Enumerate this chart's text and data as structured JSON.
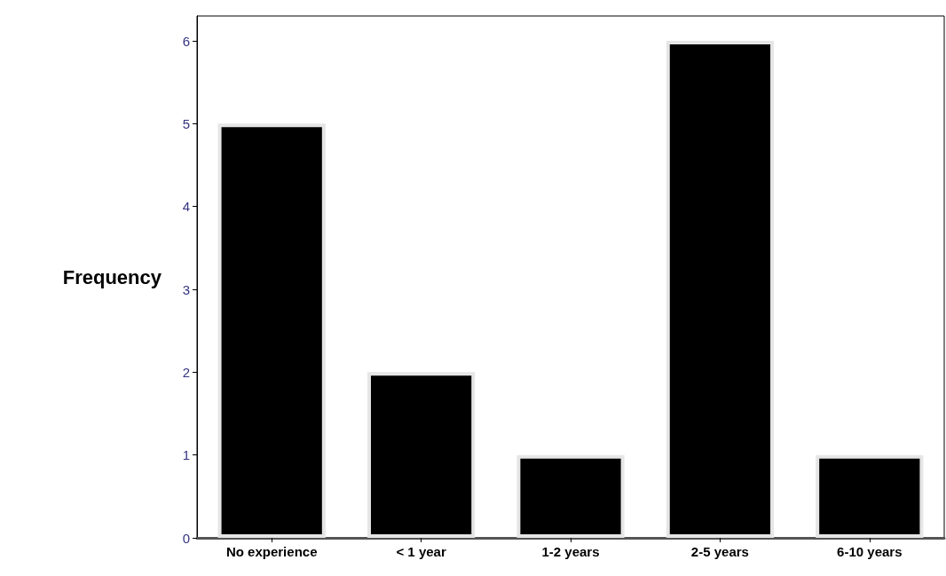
{
  "chart_data": {
    "type": "bar",
    "ylabel": "Frequency",
    "categories": [
      "No experience",
      "< 1 year",
      "1-2 years",
      "2-5 years",
      "6-10 years"
    ],
    "values": [
      5,
      2,
      1,
      6,
      1
    ],
    "color": "#000000",
    "ylim": [
      0,
      6.3
    ],
    "yticks": [
      0,
      1,
      2,
      3,
      4,
      5,
      6
    ],
    "grid": false
  }
}
